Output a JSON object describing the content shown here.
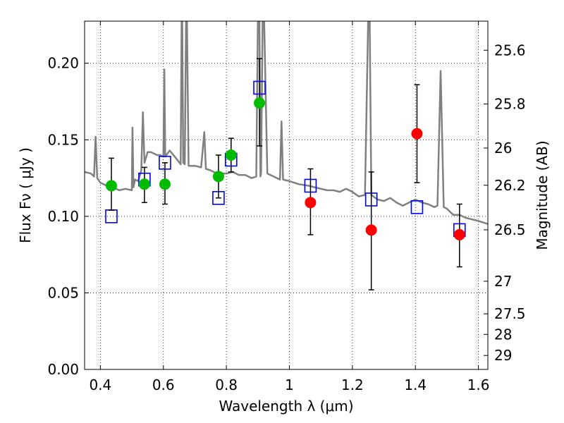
{
  "chart_data": {
    "type": "scatter",
    "xlabel": "Wavelength  λ (μm)",
    "ylabel": "Flux  Fν  ( μJy )",
    "ylabel_right": "Magnitude (AB)",
    "xlim": [
      0.35,
      1.63
    ],
    "ylim": [
      0.0,
      0.2275
    ],
    "x_ticks": [
      {
        "value": 0.4,
        "label": "0.4"
      },
      {
        "value": 0.6,
        "label": "0.6"
      },
      {
        "value": 0.8,
        "label": "0.8"
      },
      {
        "value": 1.0,
        "label": "1"
      },
      {
        "value": 1.2,
        "label": "1.2"
      },
      {
        "value": 1.4,
        "label": "1.4"
      },
      {
        "value": 1.6,
        "label": "1.6"
      }
    ],
    "y_ticks": [
      {
        "value": 0.0,
        "label": "0.00"
      },
      {
        "value": 0.05,
        "label": "0.05"
      },
      {
        "value": 0.1,
        "label": "0.10"
      },
      {
        "value": 0.15,
        "label": "0.15"
      },
      {
        "value": 0.2,
        "label": "0.20"
      }
    ],
    "right_ticks": [
      {
        "label": "25.6",
        "flux": 0.2085
      },
      {
        "label": "25.8",
        "flux": 0.1734
      },
      {
        "label": "26",
        "flux": 0.1446
      },
      {
        "label": "26.2",
        "flux": 0.1203
      },
      {
        "label": "26.5",
        "flux": 0.0912
      },
      {
        "label": "27",
        "flux": 0.0576
      },
      {
        "label": "27.5",
        "flux": 0.0363
      },
      {
        "label": "28",
        "flux": 0.0229
      },
      {
        "label": "29",
        "flux": 0.0091
      }
    ],
    "grid": true,
    "colors": {
      "spectrum": "#808080",
      "model": "#0000ff",
      "green": "#00bb00",
      "red": "#ff0000",
      "errorbar": "#000000"
    },
    "spectrum": [
      [
        0.35,
        0.129
      ],
      [
        0.37,
        0.128
      ],
      [
        0.38,
        0.126
      ],
      [
        0.385,
        0.152
      ],
      [
        0.39,
        0.125
      ],
      [
        0.4,
        0.122
      ],
      [
        0.42,
        0.12
      ],
      [
        0.44,
        0.119
      ],
      [
        0.46,
        0.117
      ],
      [
        0.48,
        0.118
      ],
      [
        0.5,
        0.117
      ],
      [
        0.502,
        0.158
      ],
      [
        0.505,
        0.119
      ],
      [
        0.51,
        0.124
      ],
      [
        0.52,
        0.123
      ],
      [
        0.53,
        0.13
      ],
      [
        0.535,
        0.168
      ],
      [
        0.54,
        0.135
      ],
      [
        0.55,
        0.142
      ],
      [
        0.56,
        0.142
      ],
      [
        0.57,
        0.141
      ],
      [
        0.58,
        0.14
      ],
      [
        0.59,
        0.14
      ],
      [
        0.6,
        0.139
      ],
      [
        0.603,
        0.196
      ],
      [
        0.606,
        0.139
      ],
      [
        0.62,
        0.143
      ],
      [
        0.64,
        0.138
      ],
      [
        0.655,
        0.134
      ],
      [
        0.658,
        0.228
      ],
      [
        0.66,
        0.228
      ],
      [
        0.663,
        0.135
      ],
      [
        0.668,
        0.134
      ],
      [
        0.672,
        0.228
      ],
      [
        0.675,
        0.228
      ],
      [
        0.68,
        0.133
      ],
      [
        0.7,
        0.133
      ],
      [
        0.72,
        0.132
      ],
      [
        0.73,
        0.155
      ],
      [
        0.735,
        0.131
      ],
      [
        0.75,
        0.13
      ],
      [
        0.77,
        0.128
      ],
      [
        0.8,
        0.128
      ],
      [
        0.82,
        0.129
      ],
      [
        0.84,
        0.127
      ],
      [
        0.86,
        0.127
      ],
      [
        0.88,
        0.125
      ],
      [
        0.895,
        0.126
      ],
      [
        0.9,
        0.228
      ],
      [
        0.905,
        0.228
      ],
      [
        0.908,
        0.126
      ],
      [
        0.91,
        0.128
      ],
      [
        0.915,
        0.228
      ],
      [
        0.92,
        0.228
      ],
      [
        0.93,
        0.128
      ],
      [
        0.95,
        0.126
      ],
      [
        0.97,
        0.124
      ],
      [
        0.975,
        0.162
      ],
      [
        0.98,
        0.124
      ],
      [
        1.0,
        0.123
      ],
      [
        1.03,
        0.121
      ],
      [
        1.06,
        0.12
      ],
      [
        1.08,
        0.119
      ],
      [
        1.1,
        0.118
      ],
      [
        1.12,
        0.117
      ],
      [
        1.14,
        0.117
      ],
      [
        1.16,
        0.116
      ],
      [
        1.18,
        0.118
      ],
      [
        1.2,
        0.116
      ],
      [
        1.22,
        0.113
      ],
      [
        1.24,
        0.114
      ],
      [
        1.25,
        0.228
      ],
      [
        1.255,
        0.228
      ],
      [
        1.26,
        0.114
      ],
      [
        1.28,
        0.111
      ],
      [
        1.3,
        0.11
      ],
      [
        1.32,
        0.112
      ],
      [
        1.34,
        0.109
      ],
      [
        1.36,
        0.107
      ],
      [
        1.38,
        0.109
      ],
      [
        1.4,
        0.111
      ],
      [
        1.42,
        0.109
      ],
      [
        1.44,
        0.108
      ],
      [
        1.46,
        0.106
      ],
      [
        1.47,
        0.107
      ],
      [
        1.48,
        0.195
      ],
      [
        1.49,
        0.106
      ],
      [
        1.5,
        0.105
      ],
      [
        1.52,
        0.101
      ],
      [
        1.54,
        0.101
      ],
      [
        1.56,
        0.099
      ],
      [
        1.58,
        0.098
      ],
      [
        1.6,
        0.097
      ],
      [
        1.63,
        0.095
      ]
    ],
    "model_points": [
      {
        "x": 0.435,
        "y": 0.1
      },
      {
        "x": 0.54,
        "y": 0.124
      },
      {
        "x": 0.605,
        "y": 0.135
      },
      {
        "x": 0.775,
        "y": 0.112
      },
      {
        "x": 0.815,
        "y": 0.137
      },
      {
        "x": 0.905,
        "y": 0.184
      },
      {
        "x": 1.067,
        "y": 0.12
      },
      {
        "x": 1.26,
        "y": 0.111
      },
      {
        "x": 1.405,
        "y": 0.106
      },
      {
        "x": 1.54,
        "y": 0.091
      }
    ],
    "observed_points": [
      {
        "x": 0.435,
        "y": 0.12,
        "err_lo": 0.104,
        "err_hi": 0.138,
        "color": "green"
      },
      {
        "x": 0.54,
        "y": 0.121,
        "err_lo": 0.109,
        "err_hi": 0.132,
        "color": "green"
      },
      {
        "x": 0.605,
        "y": 0.121,
        "err_lo": 0.108,
        "err_hi": 0.135,
        "color": "green"
      },
      {
        "x": 0.775,
        "y": 0.126,
        "err_lo": 0.112,
        "err_hi": 0.14,
        "color": "green"
      },
      {
        "x": 0.815,
        "y": 0.14,
        "err_lo": 0.129,
        "err_hi": 0.151,
        "color": "green"
      },
      {
        "x": 0.905,
        "y": 0.174,
        "err_lo": 0.146,
        "err_hi": 0.203,
        "color": "green"
      },
      {
        "x": 1.067,
        "y": 0.109,
        "err_lo": 0.088,
        "err_hi": 0.131,
        "color": "red"
      },
      {
        "x": 1.26,
        "y": 0.091,
        "err_lo": 0.052,
        "err_hi": 0.129,
        "color": "red"
      },
      {
        "x": 1.405,
        "y": 0.154,
        "err_lo": 0.122,
        "err_hi": 0.186,
        "color": "red"
      },
      {
        "x": 1.54,
        "y": 0.088,
        "err_lo": 0.067,
        "err_hi": 0.108,
        "color": "red"
      }
    ]
  }
}
